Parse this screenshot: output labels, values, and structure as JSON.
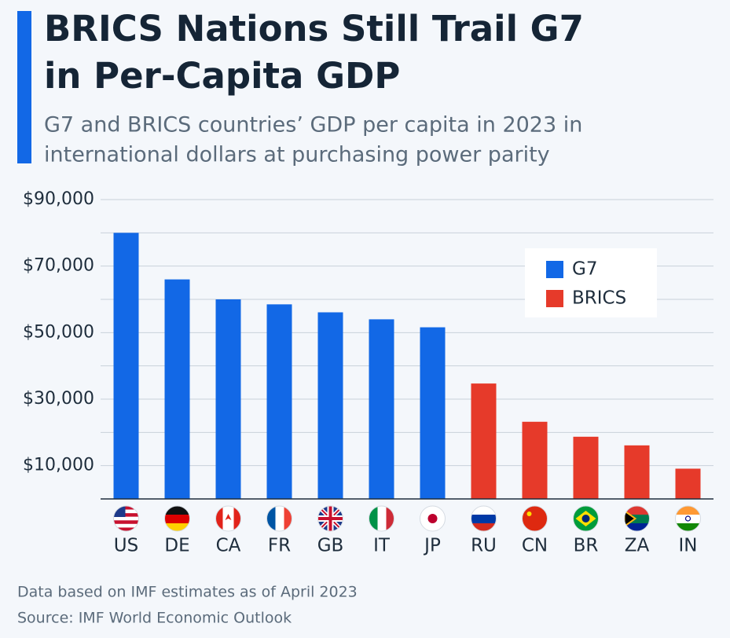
{
  "chart_data": {
    "type": "bar",
    "title": [
      "BRICS Nations Still Trail G7",
      "in Per-Capita GDP"
    ],
    "subtitle": [
      "G7 and BRICS countries’ GDP per capita in 2023 in",
      "international dollars at purchasing power parity"
    ],
    "categories": [
      "US",
      "DE",
      "CA",
      "FR",
      "GB",
      "IT",
      "JP",
      "RU",
      "CN",
      "BR",
      "ZA",
      "IN"
    ],
    "series": [
      {
        "name": "G7",
        "color": "#1268e6",
        "values": [
          80000,
          66000,
          60000,
          58500,
          56100,
          54000,
          51600,
          null,
          null,
          null,
          null,
          null
        ]
      },
      {
        "name": "BRICS",
        "color": "#e63a2a",
        "values": [
          null,
          null,
          null,
          null,
          null,
          null,
          null,
          34700,
          23200,
          18700,
          16100,
          9100
        ]
      }
    ],
    "ylim": [
      0,
      90000
    ],
    "yticks": [
      {
        "value": 10000,
        "label": "$10,000"
      },
      {
        "value": 30000,
        "label": "$30,000"
      },
      {
        "value": 50000,
        "label": "$50,000"
      },
      {
        "value": 70000,
        "label": "$70,000"
      },
      {
        "value": 90000,
        "label": "$90,000"
      }
    ],
    "minor_yticks": [
      20000,
      40000,
      60000,
      80000
    ],
    "grid": true,
    "legend": "upper right",
    "notes": [
      "Data based on IMF estimates as of April 2023",
      "Source: IMF World Economic Outlook"
    ]
  }
}
